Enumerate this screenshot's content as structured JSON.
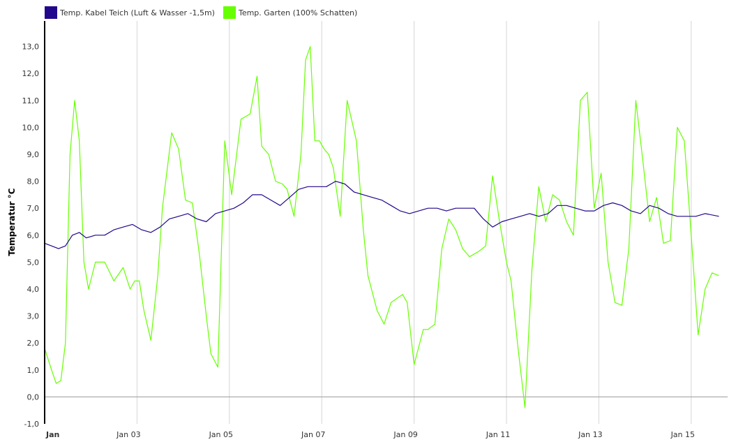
{
  "chart_data": {
    "type": "line",
    "ylabel": "Temperatur °C",
    "ylim": [
      -1,
      14
    ],
    "grid": true,
    "legend_position": "top-left",
    "y_ticks": [
      "-1,0",
      "0,0",
      "1,0",
      "2,0",
      "3,0",
      "4,0",
      "5,0",
      "6,0",
      "7,0",
      "8,0",
      "9,0",
      "10,0",
      "11,0",
      "12,0",
      "13,0"
    ],
    "x_ticks": [
      {
        "day": 1,
        "label": "Jan",
        "bold": true
      },
      {
        "day": 3,
        "label": "Jan 03"
      },
      {
        "day": 5,
        "label": "Jan 05"
      },
      {
        "day": 7,
        "label": "Jan 07"
      },
      {
        "day": 9,
        "label": "Jan 09"
      },
      {
        "day": 11,
        "label": "Jan 11"
      },
      {
        "day": 13,
        "label": "Jan 13"
      },
      {
        "day": 15,
        "label": "Jan 15"
      }
    ],
    "series": [
      {
        "name": "Temp. Kabel Teich (Luft & Wasser -1,5m)",
        "color": "#22068c",
        "x": [
          1.0,
          1.15,
          1.3,
          1.45,
          1.6,
          1.75,
          1.9,
          2.1,
          2.3,
          2.5,
          2.7,
          2.9,
          3.1,
          3.3,
          3.5,
          3.7,
          3.9,
          4.1,
          4.3,
          4.5,
          4.7,
          4.9,
          5.1,
          5.3,
          5.5,
          5.7,
          5.9,
          6.1,
          6.3,
          6.5,
          6.7,
          6.9,
          7.1,
          7.3,
          7.5,
          7.7,
          7.9,
          8.1,
          8.3,
          8.5,
          8.7,
          8.9,
          9.1,
          9.3,
          9.5,
          9.7,
          9.9,
          10.1,
          10.3,
          10.5,
          10.7,
          10.9,
          11.1,
          11.3,
          11.5,
          11.7,
          11.9,
          12.1,
          12.3,
          12.5,
          12.7,
          12.9,
          13.1,
          13.3,
          13.5,
          13.7,
          13.9,
          14.1,
          14.3,
          14.5,
          14.7,
          14.9,
          15.1,
          15.3,
          15.6
        ],
        "y": [
          5.7,
          5.6,
          5.5,
          5.6,
          6.0,
          6.1,
          5.9,
          6.0,
          6.0,
          6.2,
          6.3,
          6.4,
          6.2,
          6.1,
          6.3,
          6.6,
          6.7,
          6.8,
          6.6,
          6.5,
          6.8,
          6.9,
          7.0,
          7.2,
          7.5,
          7.5,
          7.3,
          7.1,
          7.4,
          7.7,
          7.8,
          7.8,
          7.8,
          8.0,
          7.9,
          7.6,
          7.5,
          7.4,
          7.3,
          7.1,
          6.9,
          6.8,
          6.9,
          7.0,
          7.0,
          6.9,
          7.0,
          7.0,
          7.0,
          6.6,
          6.3,
          6.5,
          6.6,
          6.7,
          6.8,
          6.7,
          6.8,
          7.1,
          7.1,
          7.0,
          6.9,
          6.9,
          7.1,
          7.2,
          7.1,
          6.9,
          6.8,
          7.1,
          7.0,
          6.8,
          6.7,
          6.7,
          6.7,
          6.8,
          6.7
        ]
      },
      {
        "name": "Temp. Garten (100% Schatten)",
        "color": "#66ff00",
        "x": [
          1.0,
          1.15,
          1.25,
          1.35,
          1.45,
          1.55,
          1.65,
          1.75,
          1.85,
          1.95,
          2.1,
          2.3,
          2.5,
          2.7,
          2.85,
          2.95,
          3.05,
          3.15,
          3.3,
          3.45,
          3.55,
          3.75,
          3.9,
          4.05,
          4.2,
          4.35,
          4.5,
          4.6,
          4.75,
          4.9,
          5.05,
          5.25,
          5.45,
          5.6,
          5.7,
          5.85,
          6.0,
          6.15,
          6.25,
          6.4,
          6.55,
          6.65,
          6.75,
          6.85,
          6.95,
          7.05,
          7.15,
          7.25,
          7.4,
          7.55,
          7.75,
          7.9,
          8.0,
          8.2,
          8.35,
          8.5,
          8.75,
          8.85,
          9.0,
          9.2,
          9.3,
          9.45,
          9.6,
          9.75,
          9.9,
          10.05,
          10.2,
          10.4,
          10.55,
          10.7,
          10.85,
          11.0,
          11.1,
          11.25,
          11.4,
          11.55,
          11.7,
          11.85,
          12.0,
          12.15,
          12.3,
          12.45,
          12.6,
          12.75,
          12.9,
          13.05,
          13.2,
          13.35,
          13.5,
          13.65,
          13.8,
          13.95,
          14.1,
          14.25,
          14.4,
          14.55,
          14.7,
          14.85,
          15.0,
          15.15,
          15.3,
          15.45,
          15.6
        ],
        "y": [
          1.8,
          1.0,
          0.5,
          0.6,
          2.0,
          9.0,
          11.0,
          9.5,
          5.0,
          4.0,
          5.0,
          5.0,
          4.3,
          4.8,
          4.0,
          4.3,
          4.3,
          3.2,
          2.1,
          4.5,
          7.0,
          9.8,
          9.2,
          7.3,
          7.2,
          5.3,
          3.0,
          1.6,
          1.1,
          9.5,
          7.5,
          10.3,
          10.5,
          11.9,
          9.3,
          9.0,
          8.0,
          7.9,
          7.7,
          6.7,
          9.0,
          12.5,
          13.0,
          9.5,
          9.5,
          9.2,
          9.0,
          8.5,
          6.7,
          11.0,
          9.5,
          6.2,
          4.5,
          3.2,
          2.7,
          3.5,
          3.8,
          3.5,
          1.2,
          2.5,
          2.5,
          2.7,
          5.5,
          6.6,
          6.2,
          5.5,
          5.2,
          5.4,
          5.6,
          8.2,
          6.5,
          5.0,
          4.3,
          1.8,
          -0.4,
          4.7,
          7.8,
          6.5,
          7.5,
          7.3,
          6.5,
          6.0,
          11.0,
          11.3,
          7.0,
          8.3,
          5.0,
          3.5,
          3.4,
          5.5,
          11.0,
          8.8,
          6.5,
          7.4,
          5.7,
          5.8,
          10.0,
          9.5,
          6.0,
          2.3,
          4.0,
          4.6,
          4.5
        ]
      }
    ]
  }
}
